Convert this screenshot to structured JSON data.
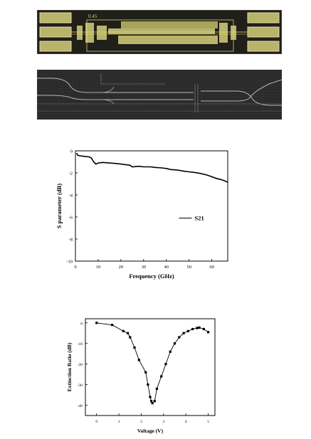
{
  "chip_photo": {
    "label": "0.45"
  },
  "chart_data": [
    {
      "type": "line",
      "xlabel": "Frequency (GHz)",
      "ylabel": "S parameter (dB)",
      "xlim": [
        0,
        67
      ],
      "ylim": [
        -10,
        0
      ],
      "xticks": [
        0,
        10,
        20,
        30,
        40,
        50,
        60
      ],
      "yticks": [
        0,
        -2,
        -4,
        -6,
        -8,
        -10
      ],
      "legend_position": "center-right",
      "series": [
        {
          "name": "S21",
          "x": [
            0.5,
            1,
            2,
            4,
            6,
            7,
            8,
            9,
            10,
            12,
            15,
            18,
            20,
            22,
            24,
            25,
            28,
            30,
            33,
            35,
            38,
            40,
            42,
            45,
            48,
            50,
            52,
            55,
            58,
            60,
            62,
            64,
            66,
            67
          ],
          "y": [
            -0.2,
            -0.4,
            -0.45,
            -0.5,
            -0.55,
            -0.65,
            -1.0,
            -1.2,
            -1.1,
            -1.05,
            -1.1,
            -1.15,
            -1.2,
            -1.25,
            -1.3,
            -1.45,
            -1.4,
            -1.45,
            -1.45,
            -1.5,
            -1.55,
            -1.6,
            -1.7,
            -1.75,
            -1.85,
            -1.9,
            -1.95,
            -2.05,
            -2.2,
            -2.35,
            -2.5,
            -2.6,
            -2.75,
            -2.85
          ]
        }
      ]
    },
    {
      "type": "line",
      "xlabel": "Voltage (V)",
      "ylabel": "Extinction Ratio (dB)",
      "xlim": [
        -0.5,
        5.3
      ],
      "ylim": [
        -45,
        2
      ],
      "xticks": [
        0,
        1,
        2,
        3,
        4,
        5
      ],
      "yticks": [
        0,
        -10,
        -20,
        -30,
        -40
      ],
      "series": [
        {
          "name": "",
          "x": [
            0,
            0.7,
            1.2,
            1.4,
            1.5,
            1.7,
            1.9,
            2.2,
            2.3,
            2.4,
            2.45,
            2.5,
            2.6,
            2.7,
            2.9,
            3.1,
            3.3,
            3.5,
            3.7,
            3.9,
            4.1,
            4.3,
            4.5,
            4.6,
            4.8,
            5.0
          ],
          "y": [
            0,
            -1,
            -4,
            -5,
            -7,
            -12,
            -18,
            -24,
            -30,
            -36,
            -38,
            -39,
            -38,
            -32,
            -26,
            -20,
            -14,
            -10,
            -7,
            -5,
            -4,
            -3,
            -2.5,
            -2.3,
            -3,
            -4.5
          ]
        }
      ]
    }
  ]
}
